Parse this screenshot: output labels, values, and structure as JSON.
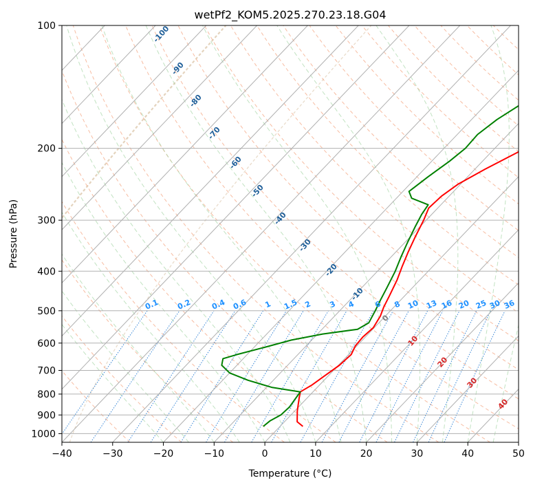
{
  "chart_data": {
    "type": "line",
    "title": "wetPf2_KOM5.2025.270.23.18.G04",
    "xlabel": "Temperature (°C)",
    "ylabel": "Pressure (hPa)",
    "xlim": [
      -40,
      50
    ],
    "ylim": [
      1050,
      100
    ],
    "x_ticks": [
      -40,
      -30,
      -20,
      -10,
      0,
      10,
      20,
      30,
      40,
      50
    ],
    "x_tick_labels": [
      "−40",
      "−30",
      "−20",
      "−10",
      "0",
      "10",
      "20",
      "30",
      "40",
      "50"
    ],
    "y_ticks": [
      100,
      200,
      300,
      400,
      500,
      600,
      700,
      800,
      900,
      1000
    ],
    "y_tick_labels": [
      "100",
      "200",
      "300",
      "400",
      "500",
      "600",
      "700",
      "800",
      "900",
      "1000"
    ],
    "series": [
      {
        "name": "temperature",
        "color": "#ff0000",
        "points": [
          [
            4.5,
            960
          ],
          [
            2.5,
            935
          ],
          [
            0.5,
            880
          ],
          [
            -1.5,
            820
          ],
          [
            -2.5,
            790
          ],
          [
            -1.5,
            760
          ],
          [
            -0.7,
            720
          ],
          [
            0.2,
            680
          ],
          [
            0.5,
            640
          ],
          [
            -0.3,
            610
          ],
          [
            -0.5,
            580
          ],
          [
            -0.2,
            550
          ],
          [
            -1.0,
            515
          ],
          [
            -2.0,
            490
          ],
          [
            -3.0,
            460
          ],
          [
            -4.5,
            420
          ],
          [
            -6.0,
            390
          ],
          [
            -7.5,
            360
          ],
          [
            -9.0,
            330
          ],
          [
            -10.5,
            300
          ],
          [
            -11.8,
            280
          ],
          [
            -11.5,
            262
          ],
          [
            -10.5,
            245
          ],
          [
            -8.0,
            225
          ],
          [
            -4.5,
            203
          ],
          [
            1.5,
            185
          ],
          [
            9.5,
            165
          ],
          [
            24.0,
            135
          ],
          [
            34.0,
            118
          ],
          [
            41.0,
            108
          ],
          [
            47.0,
            100
          ]
        ]
      },
      {
        "name": "dewpoint",
        "color": "#008000",
        "points": [
          [
            -3.3,
            960
          ],
          [
            -3.0,
            930
          ],
          [
            -2.0,
            900
          ],
          [
            -1.8,
            860
          ],
          [
            -2.2,
            820
          ],
          [
            -2.5,
            790
          ],
          [
            -9.0,
            770
          ],
          [
            -15.0,
            740
          ],
          [
            -20.0,
            710
          ],
          [
            -23.0,
            680
          ],
          [
            -24.0,
            655
          ],
          [
            -22.0,
            640
          ],
          [
            -18.0,
            615
          ],
          [
            -14.0,
            590
          ],
          [
            -9.0,
            570
          ],
          [
            -3.0,
            555
          ],
          [
            -2.0,
            535
          ],
          [
            -3.0,
            500
          ],
          [
            -4.0,
            470
          ],
          [
            -5.0,
            440
          ],
          [
            -6.5,
            400
          ],
          [
            -8.0,
            370
          ],
          [
            -9.5,
            340
          ],
          [
            -11.0,
            310
          ],
          [
            -12.0,
            290
          ],
          [
            -12.5,
            275
          ],
          [
            -17.0,
            265
          ],
          [
            -18.8,
            255
          ],
          [
            -17.8,
            235
          ],
          [
            -16.5,
            215
          ],
          [
            -15.8,
            200
          ],
          [
            -16.0,
            185
          ],
          [
            -15.0,
            170
          ],
          [
            -13.0,
            155
          ],
          [
            -10.0,
            140
          ],
          [
            -5.0,
            125
          ],
          [
            -2.0,
            115
          ],
          [
            -1.0,
            105
          ],
          [
            0.0,
            100
          ]
        ]
      }
    ],
    "dry_adiabat_labels": [
      "-100",
      "-90",
      "-80",
      "-70",
      "-60",
      "-50",
      "-40",
      "-30",
      "-20",
      "-10"
    ],
    "mixing_ratio_labels": [
      "0.1",
      "0.2",
      "0.4",
      "0.6",
      "1",
      "1.5",
      "2",
      "3",
      "4",
      "6",
      "8",
      "10",
      "13",
      "16",
      "20",
      "25",
      "30",
      "36"
    ],
    "mixing_ratio_values": [
      0.1,
      0.2,
      0.4,
      0.6,
      1,
      1.5,
      2,
      3,
      4,
      6,
      8,
      10,
      13,
      16,
      20,
      25,
      30,
      36
    ],
    "moist_adiabat_labels": [
      "0",
      "10",
      "20",
      "30",
      "40"
    ],
    "colors": {
      "isotherm": "#b0b0b0",
      "isobar": "#b0b0b0",
      "dry_adiabat": "#f4a582",
      "moist_adiabat": "#a6d5a6",
      "mixing_ratio": "#1f78d1",
      "dry_label": "#1f5f99",
      "mixing_label": "#1e90ff",
      "moist_label": "#d62728",
      "moist_label_zero": "#7f7f7f",
      "background_curve": "#c9a77c"
    }
  }
}
